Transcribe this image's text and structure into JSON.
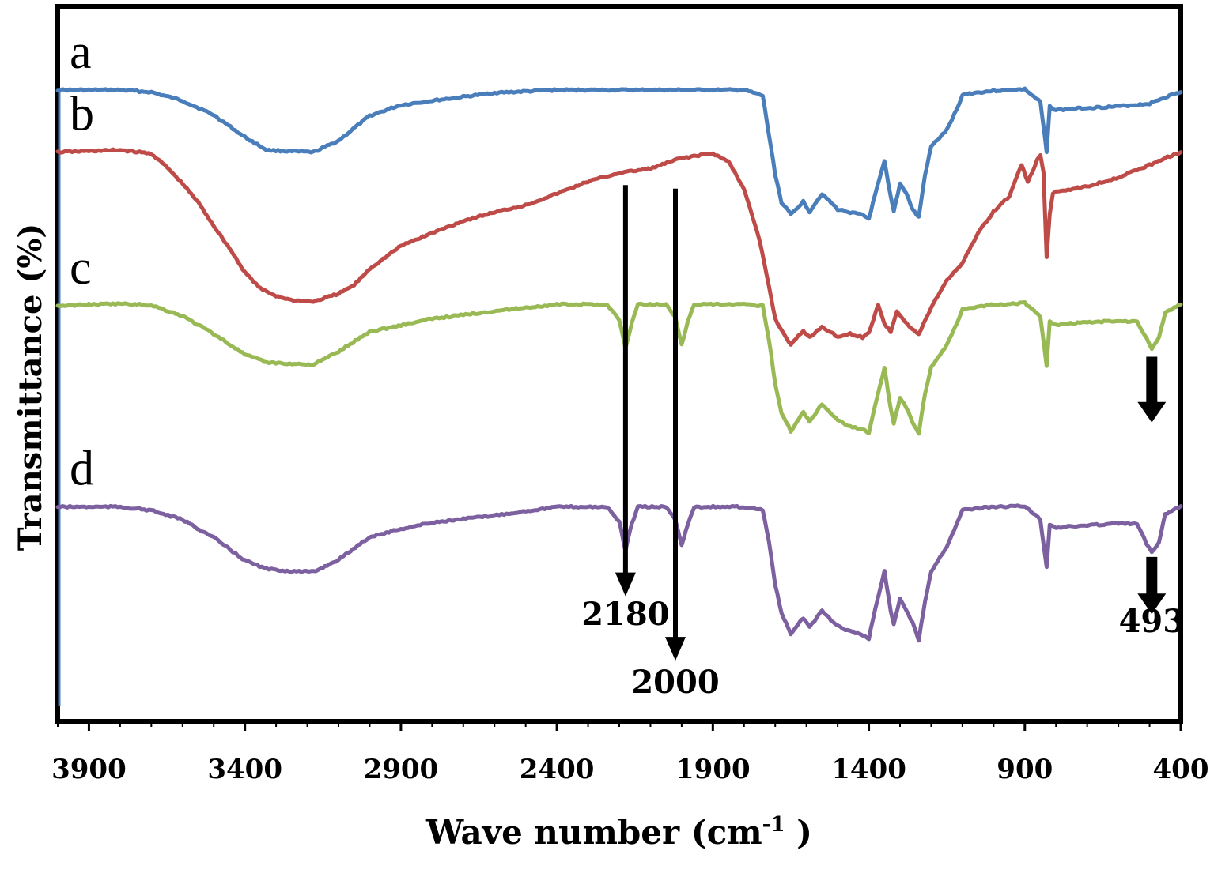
{
  "chart_data": {
    "type": "line",
    "title": "",
    "xlabel": "Wave number (cm",
    "xlabel_sup": "-1",
    "xlabel_close": " )",
    "ylabel": "Transmittance (%)",
    "xlim": [
      4000,
      400
    ],
    "x_ticks": [
      3900,
      3400,
      2900,
      2400,
      1900,
      1400,
      900,
      400
    ],
    "x_tick_labels": [
      "3900",
      "3400",
      "2900",
      "2400",
      "1900",
      "1400",
      "900",
      "400"
    ],
    "y_units": "relative transmittance, stacked (0 = panel bottom, 100 = panel top)",
    "ylim": [
      0,
      100
    ],
    "grid": false,
    "legend": "none",
    "series": [
      {
        "name": "a",
        "color": "#4a7ebb",
        "points": [
          [
            4000,
            88.3
          ],
          [
            3900,
            88.3
          ],
          [
            3800,
            88.3
          ],
          [
            3700,
            88.0
          ],
          [
            3600,
            86.8
          ],
          [
            3500,
            84.8
          ],
          [
            3400,
            81.7
          ],
          [
            3330,
            79.9
          ],
          [
            3250,
            79.7
          ],
          [
            3180,
            79.6
          ],
          [
            3100,
            81.2
          ],
          [
            3000,
            84.7
          ],
          [
            2900,
            86.2
          ],
          [
            2800,
            86.8
          ],
          [
            2600,
            87.9
          ],
          [
            2400,
            88.3
          ],
          [
            2200,
            88.3
          ],
          [
            1950,
            88.3
          ],
          [
            1800,
            88.3
          ],
          [
            1740,
            87.5
          ],
          [
            1720,
            82.0
          ],
          [
            1700,
            76.5
          ],
          [
            1680,
            72.6
          ],
          [
            1650,
            70.9
          ],
          [
            1610,
            72.7
          ],
          [
            1590,
            71.3
          ],
          [
            1550,
            73.8
          ],
          [
            1500,
            71.6
          ],
          [
            1460,
            71.2
          ],
          [
            1420,
            70.8
          ],
          [
            1400,
            70.3
          ],
          [
            1380,
            73.6
          ],
          [
            1350,
            78.3
          ],
          [
            1330,
            73.3
          ],
          [
            1320,
            71.3
          ],
          [
            1300,
            75.2
          ],
          [
            1280,
            73.9
          ],
          [
            1260,
            71.6
          ],
          [
            1240,
            70.5
          ],
          [
            1220,
            76.4
          ],
          [
            1200,
            80.4
          ],
          [
            1150,
            82.7
          ],
          [
            1110,
            86.3
          ],
          [
            1100,
            87.7
          ],
          [
            1000,
            88.2
          ],
          [
            900,
            88.4
          ],
          [
            850,
            86.6
          ],
          [
            830,
            79.6
          ],
          [
            820,
            86.0
          ],
          [
            800,
            85.5
          ],
          [
            700,
            85.8
          ],
          [
            600,
            86.0
          ],
          [
            500,
            86.4
          ],
          [
            450,
            87.3
          ],
          [
            400,
            88.0
          ]
        ]
      },
      {
        "name": "b",
        "color": "#be4b48",
        "points": [
          [
            4000,
            79.6
          ],
          [
            3800,
            79.9
          ],
          [
            3700,
            79.4
          ],
          [
            3650,
            77.5
          ],
          [
            3600,
            75.2
          ],
          [
            3550,
            72.6
          ],
          [
            3500,
            69.3
          ],
          [
            3450,
            66.2
          ],
          [
            3400,
            62.8
          ],
          [
            3350,
            60.5
          ],
          [
            3300,
            59.5
          ],
          [
            3250,
            58.9
          ],
          [
            3180,
            58.7
          ],
          [
            3100,
            59.8
          ],
          [
            3050,
            61.0
          ],
          [
            3000,
            63.3
          ],
          [
            2950,
            64.9
          ],
          [
            2900,
            66.5
          ],
          [
            2800,
            68.3
          ],
          [
            2700,
            70.0
          ],
          [
            2600,
            71.2
          ],
          [
            2500,
            72.2
          ],
          [
            2400,
            73.8
          ],
          [
            2300,
            75.5
          ],
          [
            2200,
            76.7
          ],
          [
            2100,
            77.3
          ],
          [
            2000,
            78.8
          ],
          [
            1900,
            79.4
          ],
          [
            1850,
            78.3
          ],
          [
            1800,
            74.5
          ],
          [
            1750,
            67.2
          ],
          [
            1720,
            60.8
          ],
          [
            1700,
            56.3
          ],
          [
            1680,
            54.7
          ],
          [
            1650,
            52.7
          ],
          [
            1610,
            54.6
          ],
          [
            1590,
            53.7
          ],
          [
            1550,
            55.2
          ],
          [
            1500,
            53.8
          ],
          [
            1460,
            54.2
          ],
          [
            1420,
            53.7
          ],
          [
            1400,
            54.3
          ],
          [
            1370,
            58.3
          ],
          [
            1350,
            55.6
          ],
          [
            1330,
            54.5
          ],
          [
            1310,
            57.4
          ],
          [
            1270,
            55.2
          ],
          [
            1240,
            54.1
          ],
          [
            1200,
            57.9
          ],
          [
            1150,
            61.7
          ],
          [
            1100,
            64.1
          ],
          [
            1050,
            68.3
          ],
          [
            1000,
            71.3
          ],
          [
            950,
            73.4
          ],
          [
            910,
            77.9
          ],
          [
            890,
            75.4
          ],
          [
            860,
            78.5
          ],
          [
            850,
            79.2
          ],
          [
            840,
            76.8
          ],
          [
            830,
            64.8
          ],
          [
            820,
            70.9
          ],
          [
            810,
            73.8
          ],
          [
            800,
            74.1
          ],
          [
            700,
            74.8
          ],
          [
            600,
            76.1
          ],
          [
            500,
            77.8
          ],
          [
            450,
            78.8
          ],
          [
            400,
            79.6
          ]
        ]
      },
      {
        "name": "c",
        "color": "#98b954",
        "points": [
          [
            4000,
            58.1
          ],
          [
            3900,
            58.3
          ],
          [
            3800,
            58.4
          ],
          [
            3700,
            58.2
          ],
          [
            3600,
            56.7
          ],
          [
            3500,
            54.2
          ],
          [
            3400,
            51.3
          ],
          [
            3330,
            50.2
          ],
          [
            3250,
            50.0
          ],
          [
            3180,
            49.9
          ],
          [
            3100,
            51.7
          ],
          [
            3000,
            54.5
          ],
          [
            2900,
            55.4
          ],
          [
            2800,
            56.3
          ],
          [
            2600,
            57.4
          ],
          [
            2400,
            58.3
          ],
          [
            2240,
            58.3
          ],
          [
            2200,
            56.2
          ],
          [
            2180,
            52.1
          ],
          [
            2160,
            55.7
          ],
          [
            2140,
            58.3
          ],
          [
            2050,
            58.3
          ],
          [
            2020,
            56.5
          ],
          [
            2000,
            52.7
          ],
          [
            1980,
            55.9
          ],
          [
            1960,
            58.3
          ],
          [
            1800,
            58.3
          ],
          [
            1740,
            58.1
          ],
          [
            1720,
            53.4
          ],
          [
            1700,
            47.2
          ],
          [
            1680,
            43.1
          ],
          [
            1650,
            40.6
          ],
          [
            1610,
            43.3
          ],
          [
            1590,
            41.9
          ],
          [
            1550,
            44.4
          ],
          [
            1500,
            42.1
          ],
          [
            1460,
            41.3
          ],
          [
            1420,
            40.8
          ],
          [
            1400,
            40.4
          ],
          [
            1380,
            44.1
          ],
          [
            1350,
            49.4
          ],
          [
            1330,
            43.8
          ],
          [
            1320,
            41.6
          ],
          [
            1300,
            45.3
          ],
          [
            1280,
            43.9
          ],
          [
            1260,
            41.9
          ],
          [
            1240,
            40.3
          ],
          [
            1220,
            45.8
          ],
          [
            1200,
            49.6
          ],
          [
            1150,
            52.6
          ],
          [
            1110,
            56.4
          ],
          [
            1100,
            57.7
          ],
          [
            1000,
            58.3
          ],
          [
            900,
            58.5
          ],
          [
            850,
            56.6
          ],
          [
            830,
            49.6
          ],
          [
            820,
            55.9
          ],
          [
            800,
            55.5
          ],
          [
            700,
            55.8
          ],
          [
            600,
            56.0
          ],
          [
            540,
            55.9
          ],
          [
            510,
            53.6
          ],
          [
            493,
            52.1
          ],
          [
            470,
            53.6
          ],
          [
            450,
            57.2
          ],
          [
            400,
            58.3
          ]
        ]
      },
      {
        "name": "d",
        "color": "#7d60a0",
        "points": [
          [
            4000,
            30.0
          ],
          [
            3900,
            30.0
          ],
          [
            3800,
            30.0
          ],
          [
            3700,
            29.5
          ],
          [
            3600,
            28.2
          ],
          [
            3500,
            25.7
          ],
          [
            3400,
            22.5
          ],
          [
            3330,
            21.3
          ],
          [
            3250,
            21.0
          ],
          [
            3180,
            20.9
          ],
          [
            3100,
            22.6
          ],
          [
            3000,
            25.8
          ],
          [
            2900,
            26.9
          ],
          [
            2800,
            27.8
          ],
          [
            2600,
            28.8
          ],
          [
            2400,
            30.0
          ],
          [
            2240,
            30.0
          ],
          [
            2200,
            27.9
          ],
          [
            2180,
            23.9
          ],
          [
            2160,
            27.6
          ],
          [
            2140,
            30.0
          ],
          [
            2050,
            30.0
          ],
          [
            2020,
            28.2
          ],
          [
            2000,
            24.6
          ],
          [
            1980,
            27.6
          ],
          [
            1960,
            30.0
          ],
          [
            1800,
            30.0
          ],
          [
            1740,
            29.6
          ],
          [
            1720,
            25.1
          ],
          [
            1700,
            19.1
          ],
          [
            1680,
            15.1
          ],
          [
            1650,
            12.2
          ],
          [
            1610,
            14.5
          ],
          [
            1590,
            13.2
          ],
          [
            1550,
            15.4
          ],
          [
            1500,
            13.3
          ],
          [
            1460,
            12.6
          ],
          [
            1420,
            12.1
          ],
          [
            1400,
            11.6
          ],
          [
            1380,
            15.6
          ],
          [
            1350,
            21.0
          ],
          [
            1330,
            15.5
          ],
          [
            1320,
            13.5
          ],
          [
            1300,
            17.2
          ],
          [
            1280,
            15.6
          ],
          [
            1260,
            13.8
          ],
          [
            1240,
            11.4
          ],
          [
            1220,
            16.8
          ],
          [
            1200,
            21.0
          ],
          [
            1150,
            24.5
          ],
          [
            1110,
            28.4
          ],
          [
            1100,
            29.6
          ],
          [
            1000,
            30.0
          ],
          [
            900,
            30.1
          ],
          [
            850,
            28.2
          ],
          [
            830,
            21.5
          ],
          [
            820,
            27.6
          ],
          [
            800,
            27.1
          ],
          [
            700,
            27.4
          ],
          [
            600,
            27.7
          ],
          [
            540,
            27.6
          ],
          [
            510,
            24.9
          ],
          [
            493,
            23.6
          ],
          [
            470,
            25.1
          ],
          [
            450,
            29.0
          ],
          [
            400,
            30.1
          ]
        ]
      }
    ],
    "annotations": [
      {
        "label": "2180",
        "x": 2180,
        "arrow_from_y": 75.0,
        "arrow_to_y": 17.5,
        "label_y": 13.5,
        "width": "thin"
      },
      {
        "label": "2000",
        "x": 2020,
        "arrow_from_y": 74.5,
        "arrow_to_y": 8.5,
        "label_y": 4.0,
        "width": "thin"
      },
      {
        "label": "493",
        "x": 493,
        "arrow_from_y": 51.0,
        "arrow_to_y": 41.8,
        "label_y": null,
        "width": "thick"
      },
      {
        "label": "493",
        "x": 493,
        "arrow_from_y": 23.0,
        "arrow_to_y": 15.0,
        "label_y": 12.5,
        "width": "thick",
        "show_label": true
      }
    ]
  }
}
